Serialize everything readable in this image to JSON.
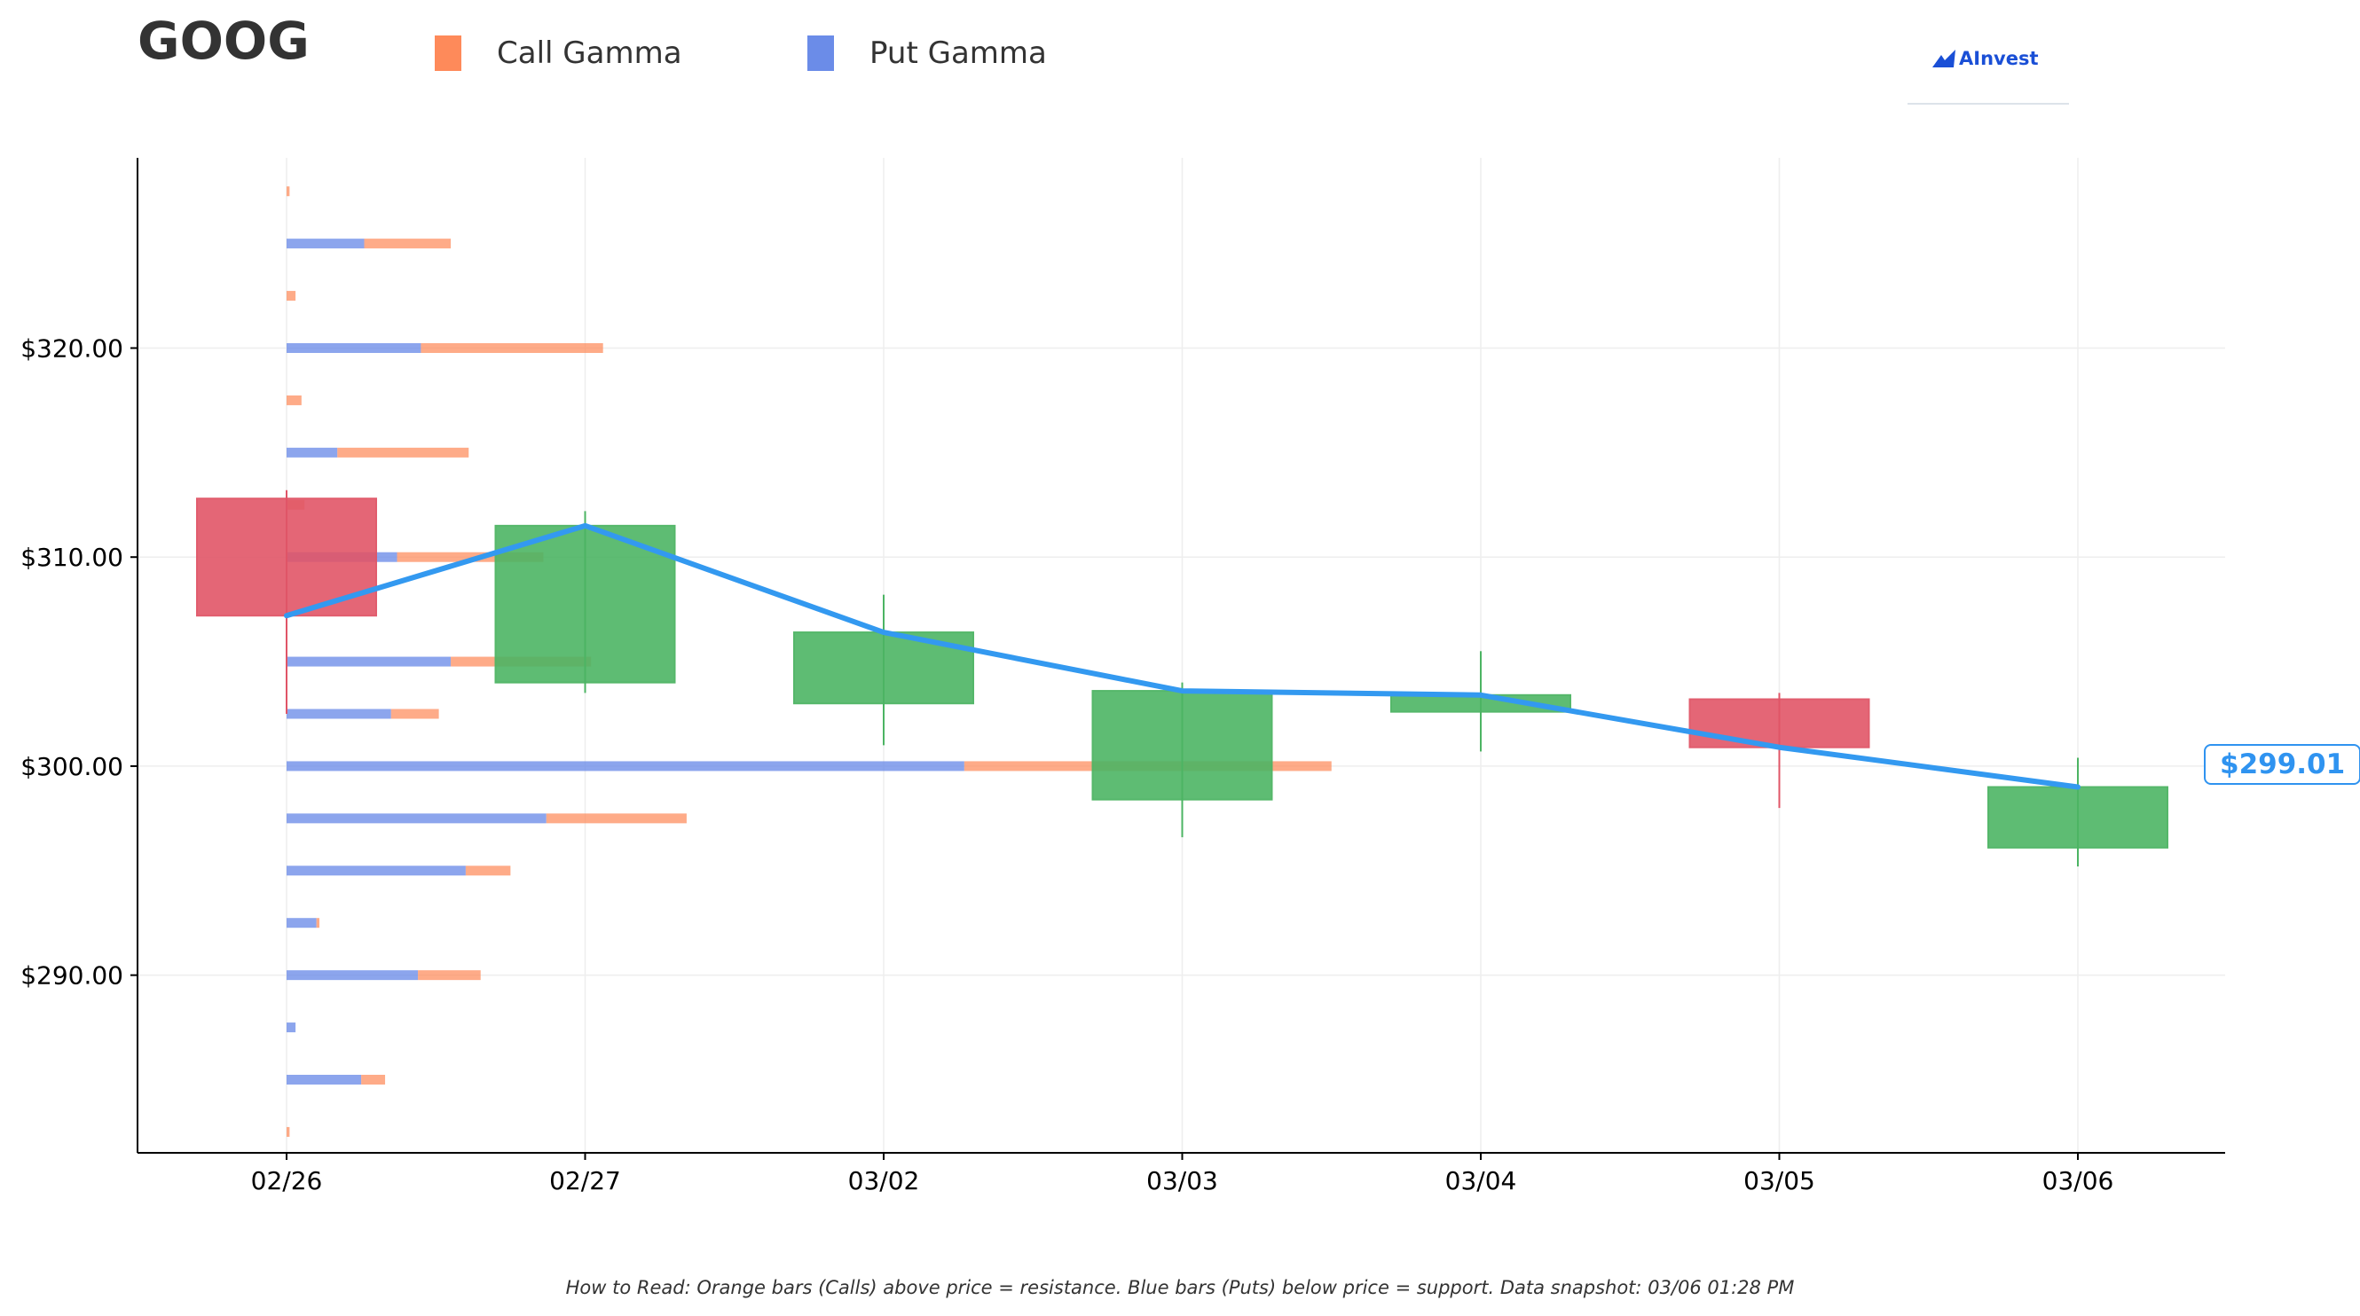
{
  "header": {
    "ticker": "GOOG",
    "legend": [
      {
        "label": "Call Gamma",
        "color": "#fe8a5a"
      },
      {
        "label": "Put Gamma",
        "color": "#6b8ce8"
      }
    ],
    "brand": "AInvest"
  },
  "footer": {
    "note": "How to Read: Orange bars (Calls) above price = resistance. Blue bars (Puts) below price = support. Data snapshot: 03/06 01:28 PM"
  },
  "chart_data": {
    "type": "candlestick",
    "title": "GOOG",
    "xlabel": "",
    "ylabel": "",
    "ylim": [
      281.5,
      329.1
    ],
    "y_ticks": [
      290,
      300,
      310,
      320
    ],
    "y_tick_labels": [
      "$290.00",
      "$300.00",
      "$310.00",
      "$320.00"
    ],
    "categories": [
      "02/26",
      "02/27",
      "03/02",
      "03/03",
      "03/04",
      "03/05",
      "03/06"
    ],
    "candles": [
      {
        "date": "02/26",
        "open": 312.8,
        "high": 313.2,
        "low": 302.5,
        "close": 307.2
      },
      {
        "date": "02/27",
        "open": 304.0,
        "high": 312.2,
        "low": 303.5,
        "close": 311.5
      },
      {
        "date": "03/02",
        "open": 303.0,
        "high": 308.2,
        "low": 301.0,
        "close": 306.4
      },
      {
        "date": "03/03",
        "open": 298.4,
        "high": 304.0,
        "low": 296.6,
        "close": 303.6
      },
      {
        "date": "03/04",
        "open": 302.6,
        "high": 305.5,
        "low": 300.7,
        "close": 303.4
      },
      {
        "date": "03/05",
        "open": 303.2,
        "high": 303.5,
        "low": 298.0,
        "close": 300.9
      },
      {
        "date": "03/06",
        "open": 296.1,
        "high": 300.4,
        "low": 295.2,
        "close": 299.0
      }
    ],
    "price_line": {
      "name": "Price",
      "color": "#3399f0",
      "values": [
        307.2,
        311.5,
        306.4,
        303.6,
        303.4,
        300.9,
        299.0
      ],
      "last_label": "$299.01"
    },
    "gamma_profile": {
      "anchor_date": "02/26",
      "x_unit": "chart days (relative gamma scale)",
      "strikes": [
        282.5,
        285,
        287.5,
        290,
        292.5,
        295,
        297.5,
        300,
        302.5,
        305,
        307.5,
        310,
        312.5,
        315,
        317.5,
        320,
        322.5,
        325,
        327.5
      ],
      "put_gamma": [
        0.0,
        0.25,
        0.03,
        0.44,
        0.1,
        0.6,
        0.87,
        2.27,
        0.35,
        0.55,
        0.0,
        0.37,
        0.0,
        0.17,
        0.0,
        0.45,
        0.0,
        0.26,
        0.0
      ],
      "call_gamma": [
        0.01,
        0.08,
        0.0,
        0.21,
        0.01,
        0.15,
        0.47,
        1.23,
        0.16,
        0.47,
        0.0,
        0.49,
        0.06,
        0.44,
        0.05,
        0.61,
        0.03,
        0.29,
        0.01
      ]
    },
    "colors": {
      "up": "#4cb463",
      "down": "#e05567",
      "call": "#fe8a5a",
      "put": "#6b8ce8",
      "price": "#3399f0"
    },
    "grid": true,
    "legend_position": "top"
  }
}
